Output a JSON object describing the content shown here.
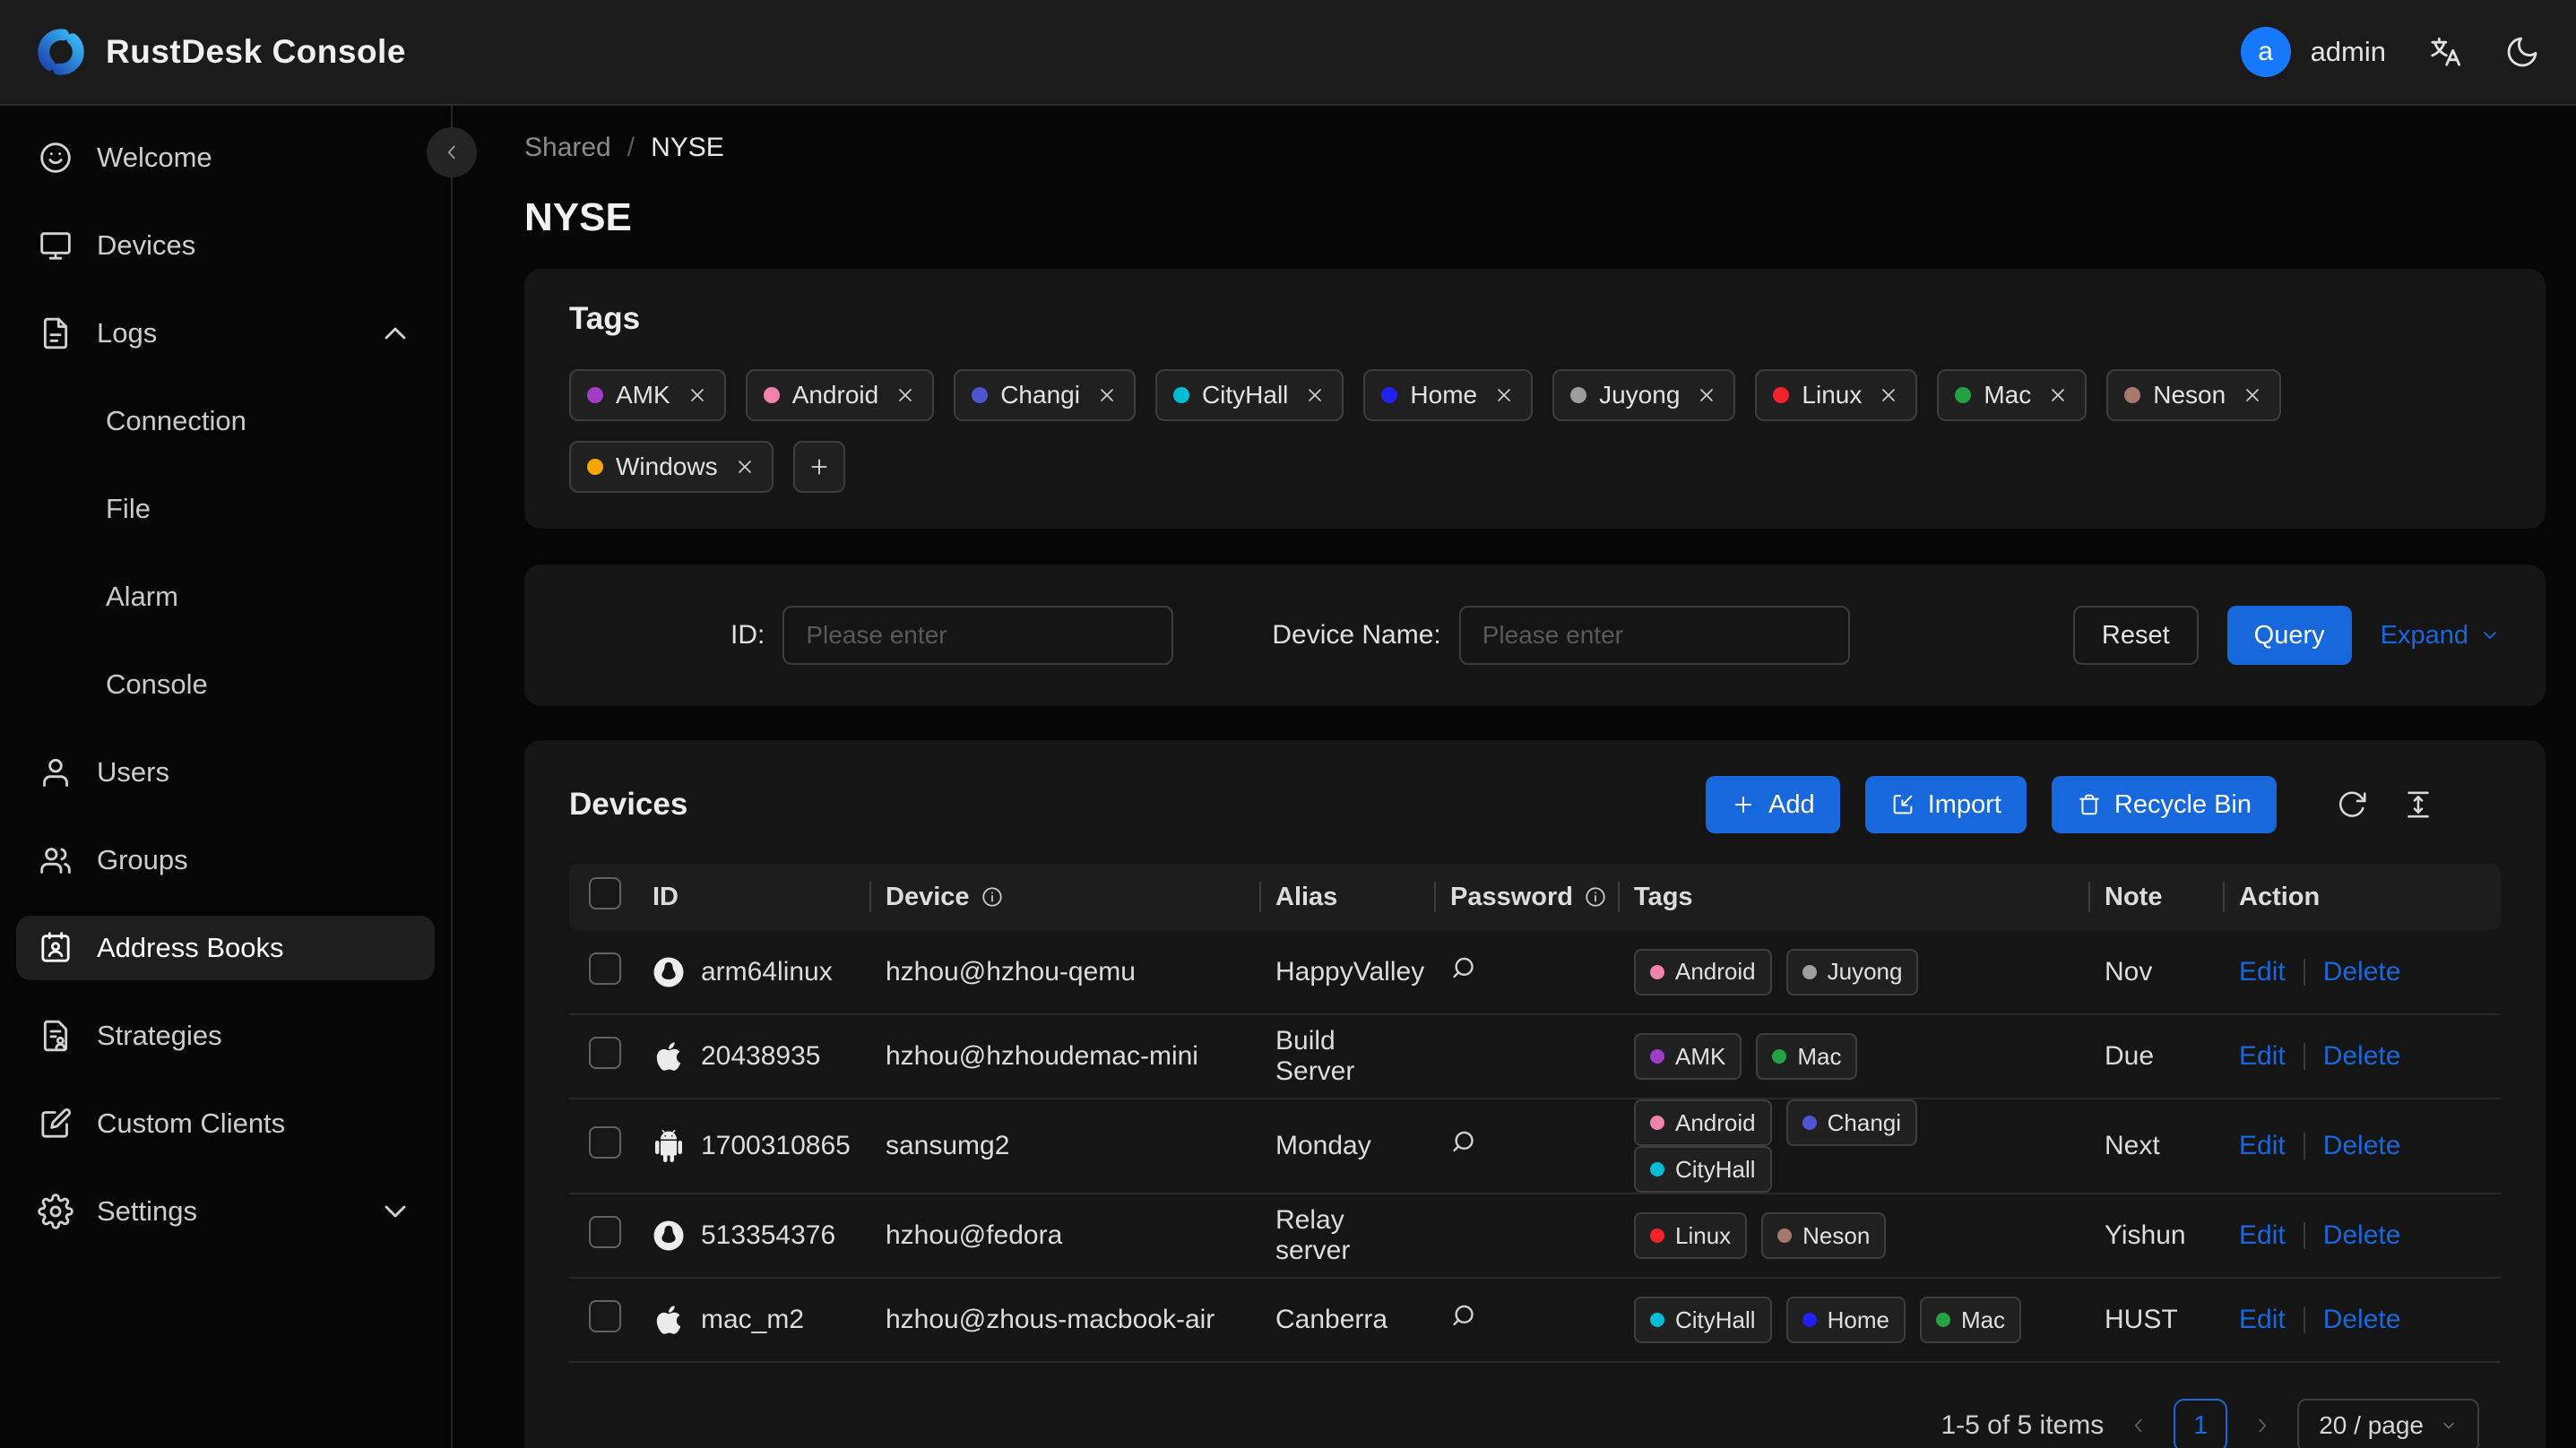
{
  "colors": {
    "accent": "#1668dc"
  },
  "topbar": {
    "title": "RustDesk Console",
    "user_initial": "a",
    "user_name": "admin"
  },
  "sidebar": {
    "items": [
      {
        "label": "Welcome",
        "icon": "smiley-icon"
      },
      {
        "label": "Devices",
        "icon": "monitor-icon"
      },
      {
        "label": "Logs",
        "icon": "file-icon",
        "expanded": true,
        "children": [
          "Connection",
          "File",
          "Alarm",
          "Console"
        ]
      },
      {
        "label": "Users",
        "icon": "user-icon"
      },
      {
        "label": "Groups",
        "icon": "users-icon"
      },
      {
        "label": "Address Books",
        "icon": "address-book-icon",
        "selected": true
      },
      {
        "label": "Strategies",
        "icon": "strategy-icon"
      },
      {
        "label": "Custom Clients",
        "icon": "edit-square-icon"
      },
      {
        "label": "Settings",
        "icon": "gear-icon",
        "collapsible": true
      }
    ]
  },
  "breadcrumb": [
    "Shared",
    "NYSE"
  ],
  "page_title": "NYSE",
  "tags_card": {
    "title": "Tags",
    "tags": [
      {
        "name": "AMK",
        "color": "#a13cc9"
      },
      {
        "name": "Android",
        "color": "#f082ab"
      },
      {
        "name": "Changi",
        "color": "#4f55d2"
      },
      {
        "name": "CityHall",
        "color": "#00bcd4"
      },
      {
        "name": "Home",
        "color": "#2120f0"
      },
      {
        "name": "Juyong",
        "color": "#9e9e9e"
      },
      {
        "name": "Linux",
        "color": "#f5222d"
      },
      {
        "name": "Mac",
        "color": "#23a243"
      },
      {
        "name": "Neson",
        "color": "#a8796a"
      },
      {
        "name": "Windows",
        "color": "#f7a500"
      }
    ]
  },
  "filter": {
    "id_label": "ID:",
    "id_placeholder": "Please enter",
    "device_label": "Device Name:",
    "device_placeholder": "Please enter",
    "reset_label": "Reset",
    "query_label": "Query",
    "expand_label": "Expand"
  },
  "devices_card": {
    "title": "Devices",
    "add_label": "Add",
    "import_label": "Import",
    "recycle_label": "Recycle Bin",
    "table": {
      "columns": [
        {
          "label": "ID"
        },
        {
          "label": "Device",
          "info": true
        },
        {
          "label": "Alias"
        },
        {
          "label": "Password",
          "info": true
        },
        {
          "label": "Tags"
        },
        {
          "label": "Note"
        },
        {
          "label": "Action"
        }
      ],
      "action_labels": [
        "Edit",
        "Delete"
      ],
      "rows": [
        {
          "os": "linux-circle-icon",
          "id": "arm64linux",
          "device": "hzhou@hzhou-qemu",
          "alias": "HappyValley",
          "has_password": true,
          "tags": [
            "Android",
            "Juyong"
          ],
          "note": "Nov"
        },
        {
          "os": "apple-icon",
          "id": "20438935",
          "device": "hzhou@hzhoudemac-mini",
          "alias": "Build Server",
          "has_password": false,
          "tags": [
            "AMK",
            "Mac"
          ],
          "note": "Due"
        },
        {
          "os": "android-icon",
          "id": "1700310865",
          "device": "sansumg2",
          "alias": "Monday",
          "has_password": true,
          "tags": [
            "Android",
            "Changi",
            "CityHall"
          ],
          "note": "Next"
        },
        {
          "os": "linux-circle-icon",
          "id": "513354376",
          "device": "hzhou@fedora",
          "alias": "Relay server",
          "has_password": false,
          "tags": [
            "Linux",
            "Neson"
          ],
          "note": "Yishun"
        },
        {
          "os": "apple-icon",
          "id": "mac_m2",
          "device": "hzhou@zhous-macbook-air",
          "alias": "Canberra",
          "has_password": true,
          "tags": [
            "CityHall",
            "Home",
            "Mac"
          ],
          "note": "HUST"
        }
      ]
    },
    "pagination": {
      "summary": "1-5 of 5 items",
      "current_page": "1",
      "page_size": "20 / page"
    }
  }
}
